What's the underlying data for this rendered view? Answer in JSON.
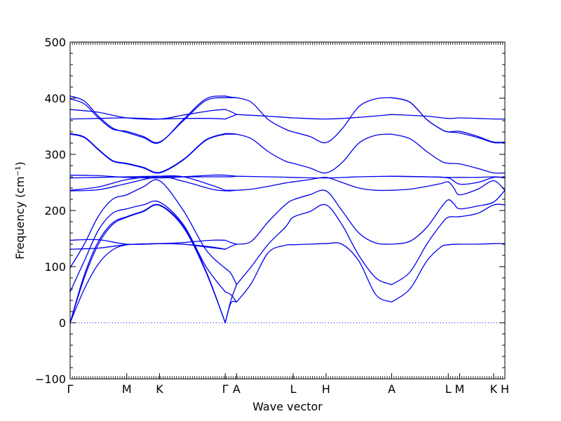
{
  "chart_data": {
    "type": "line",
    "xlabel": "Wave vector",
    "ylabel": "Frequency (cm⁻¹)",
    "ylim": [
      -100,
      500
    ],
    "yticks": [
      -100,
      0,
      100,
      200,
      300,
      400,
      500
    ],
    "ytick_labels": [
      "−100",
      "0",
      "100",
      "200",
      "300",
      "400",
      "500"
    ],
    "xlim": [
      0,
      7.68
    ],
    "high_symmetry_points": [
      {
        "label": "Γ",
        "x": 0.0
      },
      {
        "label": "M",
        "x": 1.0
      },
      {
        "label": "K",
        "x": 1.58
      },
      {
        "label": "Γ",
        "x": 2.74
      },
      {
        "label": "A",
        "x": 2.94
      },
      {
        "label": "L",
        "x": 3.94
      },
      {
        "label": "H",
        "x": 4.52
      },
      {
        "label": "A",
        "x": 5.68
      },
      {
        "label": "L",
        "x": 6.68
      },
      {
        "label": "M",
        "x": 6.88
      },
      {
        "label": "K",
        "x": 7.48
      },
      {
        "label": "H",
        "x": 7.68
      }
    ],
    "zero_line": {
      "y": 0,
      "style": "dotted"
    },
    "grid": false,
    "series_color": "#0000ee",
    "series": [
      {
        "segment": "Γ-M-K-Γ",
        "x": [
          0,
          0.25,
          0.5,
          0.75,
          1.0,
          1.29,
          1.58,
          2.0,
          2.4,
          2.74
        ],
        "values": [
          0,
          60,
          105,
          130,
          139,
          140,
          141,
          140,
          135,
          131
        ]
      },
      {
        "segment": "Γ-M-K-Γ",
        "x": [
          0,
          0.25,
          0.5,
          0.75,
          1.0,
          1.29,
          1.58,
          2.0,
          2.4,
          2.74
        ],
        "values": [
          0,
          80,
          140,
          175,
          188,
          198,
          209,
          170,
          90,
          0
        ]
      },
      {
        "segment": "Γ-M-K-Γ",
        "x": [
          0,
          0.25,
          0.5,
          0.75,
          1.0,
          1.29,
          1.58,
          2.0,
          2.4,
          2.74
        ],
        "values": [
          0,
          85,
          145,
          178,
          189,
          199,
          210,
          172,
          92,
          0
        ]
      },
      {
        "segment": "Γ-M-K-Γ",
        "x": [
          0,
          0.25,
          0.5,
          0.75,
          1.0,
          1.29,
          1.58,
          2.0,
          2.4,
          2.74
        ],
        "values": [
          55,
          110,
          165,
          195,
          203,
          210,
          215,
          175,
          100,
          55
        ]
      },
      {
        "segment": "Γ-M-K-Γ",
        "x": [
          0,
          0.25,
          0.5,
          0.75,
          1.0,
          1.29,
          1.58,
          2.0,
          2.4,
          2.74
        ],
        "values": [
          98,
          140,
          190,
          220,
          228,
          242,
          253,
          200,
          130,
          97
        ]
      },
      {
        "segment": "Γ-M-K-Γ",
        "x": [
          0,
          0.5,
          1.0,
          1.58,
          2.0,
          2.5,
          2.74
        ],
        "values": [
          131,
          133,
          139,
          141,
          140,
          135,
          131
        ]
      },
      {
        "segment": "Γ-M-K-Γ",
        "x": [
          0,
          0.5,
          1.0,
          1.58,
          2.0,
          2.5,
          2.74
        ],
        "values": [
          147,
          148,
          140,
          141,
          143,
          147,
          147
        ]
      },
      {
        "segment": "Γ-M-K-Γ",
        "x": [
          0,
          0.5,
          1.0,
          1.58,
          2.0,
          2.5,
          2.74
        ],
        "values": [
          235,
          237,
          248,
          260,
          252,
          238,
          235
        ]
      },
      {
        "segment": "Γ-M-K-Γ",
        "x": [
          0,
          0.5,
          1.0,
          1.58,
          2.0,
          2.5,
          2.74
        ],
        "values": [
          236,
          242,
          255,
          261,
          260,
          245,
          236
        ]
      },
      {
        "segment": "Γ-M-K-Γ",
        "x": [
          0,
          0.5,
          1.0,
          1.58,
          2.0,
          2.5,
          2.74
        ],
        "values": [
          258,
          259,
          260,
          261,
          260,
          260,
          260
        ]
      },
      {
        "segment": "Γ-M-K-Γ",
        "x": [
          0,
          0.5,
          1.0,
          1.58,
          2.0,
          2.5,
          2.74
        ],
        "values": [
          263,
          262,
          259,
          258,
          260,
          263,
          263
        ]
      },
      {
        "segment": "Γ-M-K-Γ",
        "x": [
          0,
          0.25,
          0.5,
          0.75,
          1.0,
          1.29,
          1.58,
          2.0,
          2.4,
          2.74
        ],
        "values": [
          336,
          330,
          308,
          288,
          283,
          276,
          267,
          290,
          325,
          336
        ]
      },
      {
        "segment": "Γ-M-K-Γ",
        "x": [
          0,
          0.25,
          0.5,
          0.75,
          1.0,
          1.29,
          1.58,
          2.0,
          2.4,
          2.74
        ],
        "values": [
          337,
          331,
          309,
          289,
          284,
          277,
          268,
          291,
          326,
          337
        ]
      },
      {
        "segment": "Γ-M-K-Γ",
        "x": [
          0,
          0.5,
          1.0,
          1.58,
          2.0,
          2.5,
          2.74
        ],
        "values": [
          363,
          364,
          365,
          363,
          364,
          364,
          363
        ]
      },
      {
        "segment": "Γ-M-K-Γ",
        "x": [
          0,
          0.5,
          1.0,
          1.58,
          2.0,
          2.5,
          2.74
        ],
        "values": [
          380,
          375,
          365,
          363,
          370,
          378,
          380
        ]
      },
      {
        "segment": "Γ-M-K-Γ",
        "x": [
          0,
          0.25,
          0.5,
          0.75,
          1.0,
          1.29,
          1.58,
          2.0,
          2.4,
          2.74
        ],
        "values": [
          399,
          390,
          365,
          345,
          341,
          332,
          322,
          360,
          396,
          401
        ]
      },
      {
        "segment": "Γ-M-K-Γ",
        "x": [
          0,
          0.25,
          0.5,
          0.75,
          1.0,
          1.29,
          1.58,
          2.0,
          2.4,
          2.74
        ],
        "values": [
          404,
          395,
          368,
          347,
          339,
          330,
          321,
          362,
          399,
          404
        ]
      },
      {
        "segment": "Γ-A",
        "x": [
          2.74,
          2.84,
          2.94
        ],
        "values": [
          0,
          35,
          37
        ]
      },
      {
        "segment": "Γ-A",
        "x": [
          2.74,
          2.84,
          2.94
        ],
        "values": [
          0,
          40,
          68
        ]
      },
      {
        "segment": "Γ-A",
        "x": [
          2.74,
          2.84,
          2.94
        ],
        "values": [
          55,
          50,
          37
        ]
      },
      {
        "segment": "Γ-A",
        "x": [
          2.74,
          2.84,
          2.94
        ],
        "values": [
          97,
          88,
          68
        ]
      },
      {
        "segment": "Γ-A",
        "x": [
          2.74,
          2.84,
          2.94
        ],
        "values": [
          131,
          136,
          140
        ]
      },
      {
        "segment": "Γ-A",
        "x": [
          2.74,
          2.84,
          2.94
        ],
        "values": [
          147,
          143,
          140
        ]
      },
      {
        "segment": "Γ-A",
        "x": [
          2.74,
          2.84,
          2.94
        ],
        "values": [
          235,
          235,
          236
        ]
      },
      {
        "segment": "Γ-A",
        "x": [
          2.74,
          2.84,
          2.94
        ],
        "values": [
          236,
          236,
          236
        ]
      },
      {
        "segment": "Γ-A",
        "x": [
          2.74,
          2.84,
          2.94
        ],
        "values": [
          260,
          260,
          261
        ]
      },
      {
        "segment": "Γ-A",
        "x": [
          2.74,
          2.84,
          2.94
        ],
        "values": [
          263,
          262,
          261
        ]
      },
      {
        "segment": "Γ-A",
        "x": [
          2.74,
          2.84,
          2.94
        ],
        "values": [
          336,
          336,
          336
        ]
      },
      {
        "segment": "Γ-A",
        "x": [
          2.74,
          2.84,
          2.94
        ],
        "values": [
          337,
          337,
          336
        ]
      },
      {
        "segment": "Γ-A",
        "x": [
          2.74,
          2.84,
          2.94
        ],
        "values": [
          363,
          367,
          371
        ]
      },
      {
        "segment": "Γ-A",
        "x": [
          2.74,
          2.84,
          2.94
        ],
        "values": [
          380,
          376,
          371
        ]
      },
      {
        "segment": "Γ-A",
        "x": [
          2.74,
          2.84,
          2.94
        ],
        "values": [
          401,
          401,
          401
        ]
      },
      {
        "segment": "Γ-A",
        "x": [
          2.74,
          2.84,
          2.94
        ],
        "values": [
          404,
          402,
          401
        ]
      },
      {
        "segment": "A-L-H-A",
        "x": [
          2.94,
          3.2,
          3.5,
          3.8,
          3.94,
          4.23,
          4.52,
          4.8,
          5.1,
          5.4,
          5.68
        ],
        "values": [
          37,
          70,
          125,
          138,
          139,
          140,
          141,
          140,
          110,
          50,
          37
        ]
      },
      {
        "segment": "A-L-H-A",
        "x": [
          2.94,
          3.2,
          3.5,
          3.8,
          3.94,
          4.23,
          4.52,
          4.8,
          5.1,
          5.4,
          5.68
        ],
        "values": [
          68,
          100,
          140,
          170,
          188,
          198,
          210,
          175,
          120,
          80,
          68
        ]
      },
      {
        "segment": "A-L-H-A",
        "x": [
          2.94,
          3.2,
          3.5,
          3.8,
          3.94,
          4.23,
          4.52,
          4.8,
          5.1,
          5.4,
          5.68
        ],
        "values": [
          140,
          145,
          180,
          210,
          219,
          228,
          235,
          200,
          160,
          142,
          140
        ]
      },
      {
        "segment": "A-L-H-A",
        "x": [
          2.94,
          3.2,
          3.5,
          3.8,
          3.94,
          4.23,
          4.52,
          4.8,
          5.1,
          5.4,
          5.68
        ],
        "values": [
          236,
          238,
          243,
          249,
          251,
          255,
          259,
          250,
          240,
          236,
          236
        ]
      },
      {
        "segment": "A-L-H-A",
        "x": [
          2.94,
          3.5,
          3.94,
          4.52,
          5.1,
          5.68
        ],
        "values": [
          261,
          260,
          259,
          258,
          260,
          261
        ]
      },
      {
        "segment": "A-L-H-A",
        "x": [
          2.94,
          3.2,
          3.5,
          3.8,
          3.94,
          4.23,
          4.52,
          4.8,
          5.1,
          5.4,
          5.68
        ],
        "values": [
          336,
          328,
          305,
          288,
          284,
          276,
          267,
          285,
          320,
          334,
          336
        ]
      },
      {
        "segment": "A-L-H-A",
        "x": [
          2.94,
          3.5,
          3.94,
          4.52,
          5.1,
          5.68
        ],
        "values": [
          371,
          368,
          365,
          363,
          366,
          371
        ]
      },
      {
        "segment": "A-L-H-A",
        "x": [
          2.94,
          3.2,
          3.5,
          3.8,
          3.94,
          4.23,
          4.52,
          4.8,
          5.1,
          5.4,
          5.68
        ],
        "values": [
          401,
          393,
          362,
          345,
          340,
          332,
          321,
          345,
          385,
          399,
          401
        ]
      },
      {
        "segment": "A-L-M-K-H",
        "x": [
          5.68,
          6.0,
          6.3,
          6.55,
          6.68,
          6.88,
          7.2,
          7.48,
          7.68
        ],
        "values": [
          37,
          60,
          110,
          135,
          139,
          140,
          140,
          141,
          141
        ]
      },
      {
        "segment": "A-L-M-K-H",
        "x": [
          5.68,
          6.0,
          6.3,
          6.55,
          6.68,
          6.88,
          7.2,
          7.48,
          7.68
        ],
        "values": [
          68,
          90,
          140,
          175,
          188,
          189,
          195,
          210,
          210
        ]
      },
      {
        "segment": "A-L-M-K-H",
        "x": [
          5.68,
          6.0,
          6.3,
          6.55,
          6.68,
          6.78,
          6.88,
          7.2,
          7.48,
          7.68
        ],
        "values": [
          140,
          145,
          170,
          205,
          219,
          212,
          203,
          208,
          215,
          236
        ]
      },
      {
        "segment": "A-L-M-K-H",
        "x": [
          5.68,
          6.0,
          6.3,
          6.55,
          6.68,
          6.78,
          6.88,
          7.2,
          7.48,
          7.68
        ],
        "values": [
          236,
          238,
          243,
          248,
          251,
          240,
          228,
          238,
          253,
          236
        ]
      },
      {
        "segment": "A-L-M-K-H",
        "x": [
          5.68,
          6.3,
          6.68,
          6.88,
          7.2,
          7.48,
          7.68
        ],
        "values": [
          261,
          260,
          258,
          247,
          250,
          259,
          258
        ]
      },
      {
        "segment": "A-L-M-K-H",
        "x": [
          5.68,
          6.3,
          6.68,
          6.88,
          7.2,
          7.48,
          7.68
        ],
        "values": [
          261,
          260,
          259,
          259,
          259,
          260,
          259
        ]
      },
      {
        "segment": "A-L-M-K-H",
        "x": [
          5.68,
          6.0,
          6.3,
          6.55,
          6.68,
          6.88,
          7.2,
          7.48,
          7.68
        ],
        "values": [
          336,
          328,
          305,
          288,
          284,
          283,
          275,
          267,
          267
        ]
      },
      {
        "segment": "A-L-M-K-H",
        "x": [
          5.68,
          6.3,
          6.68,
          6.88,
          7.2,
          7.48,
          7.68
        ],
        "values": [
          371,
          368,
          364,
          365,
          364,
          363,
          363
        ]
      },
      {
        "segment": "A-L-M-K-H",
        "x": [
          5.68,
          6.0,
          6.3,
          6.55,
          6.68,
          6.88,
          7.2,
          7.48,
          7.68
        ],
        "values": [
          401,
          393,
          362,
          345,
          340,
          341,
          332,
          322,
          322
        ]
      },
      {
        "segment": "A-L-M-K-H",
        "x": [
          5.68,
          6.0,
          6.3,
          6.55,
          6.68,
          6.88,
          7.2,
          7.48,
          7.68
        ],
        "values": [
          401,
          393,
          362,
          345,
          340,
          338,
          330,
          321,
          321
        ]
      }
    ]
  }
}
